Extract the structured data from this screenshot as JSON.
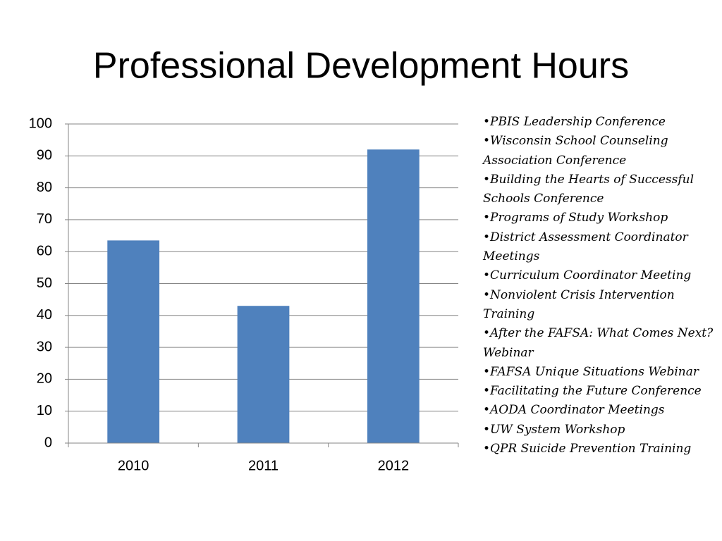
{
  "chart_data": {
    "type": "bar",
    "title": "Professional Development Hours",
    "categories": [
      "2010",
      "2011",
      "2012"
    ],
    "values": [
      63.5,
      43,
      92
    ],
    "color": "#4f81bd",
    "ylim": [
      0,
      100
    ],
    "yticks": [
      0,
      10,
      20,
      30,
      40,
      50,
      60,
      70,
      80,
      90,
      100
    ],
    "grid": true
  },
  "list": {
    "items": [
      "•PBIS Leadership Conference",
      "•Wisconsin School Counseling Association Conference",
      "•Building the Hearts of Successful Schools Conference",
      "•Programs of Study Workshop",
      "•District Assessment Coordinator Meetings",
      "•Curriculum Coordinator Meeting",
      "•Nonviolent Crisis Intervention Training",
      "•After the FAFSA: What Comes Next? Webinar",
      "•FAFSA Unique Situations Webinar",
      "•Facilitating the Future Conference",
      "•AODA Coordinator Meetings",
      "•UW System Workshop",
      "•QPR Suicide Prevention Training"
    ]
  }
}
